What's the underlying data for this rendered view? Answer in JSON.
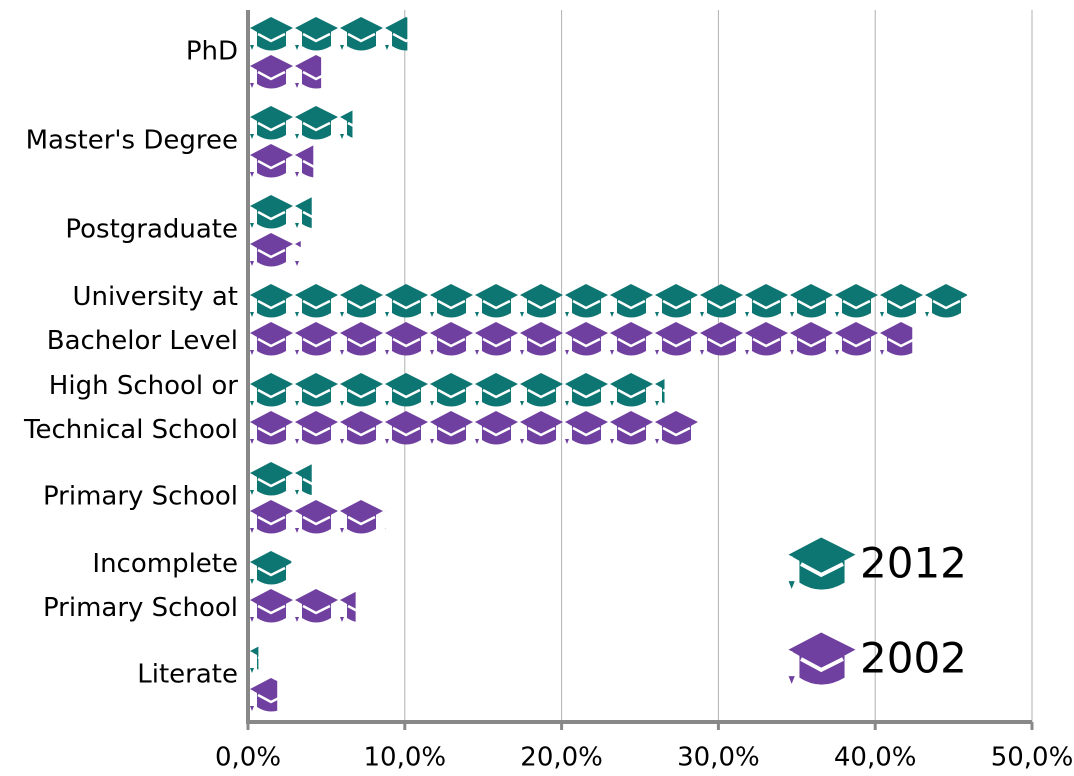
{
  "chart_data": {
    "type": "pictograph_bar",
    "categories": [
      "PhD",
      "Master's Degree",
      "Postgraduate",
      "University at\nBachelor Level",
      "High School or\nTechnical School",
      "Primary School",
      "Incomplete\nPrimary School",
      "Literate"
    ],
    "series": [
      {
        "name": "2012",
        "color": "#0e7672",
        "values": [
          10.1,
          6.6,
          4.0,
          45.8,
          26.5,
          4.0,
          2.7,
          0.6
        ]
      },
      {
        "name": "2002",
        "color": "#7040a0",
        "values": [
          4.6,
          4.1,
          3.3,
          42.3,
          28.6,
          8.7,
          6.8,
          1.8
        ]
      }
    ],
    "xlim": [
      0,
      50
    ],
    "xticks": [
      {
        "value": 0,
        "label": "0,0%"
      },
      {
        "value": 10,
        "label": "10,0%"
      },
      {
        "value": 20,
        "label": "20,0%"
      },
      {
        "value": 30,
        "label": "30,0%"
      },
      {
        "value": 40,
        "label": "40,0%"
      },
      {
        "value": 50,
        "label": "50,0%"
      }
    ],
    "grid": true
  }
}
